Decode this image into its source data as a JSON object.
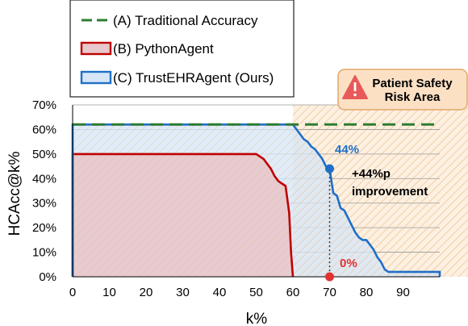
{
  "chart_data": {
    "type": "area",
    "title": "",
    "xlabel": "k%",
    "ylabel": "HCAcc@k%",
    "xlim": [
      0,
      100
    ],
    "ylim": [
      0,
      70
    ],
    "x_ticks": [
      "0",
      "10",
      "20",
      "30",
      "40",
      "50",
      "60",
      "70",
      "80",
      "90"
    ],
    "y_ticks": [
      "0%",
      "10%",
      "20%",
      "30%",
      "40%",
      "50%",
      "60%",
      "70%"
    ],
    "grid": "horizontal",
    "legend_position": "top-left",
    "series": [
      {
        "name": "(A) Traditional Accuracy",
        "style": "dashed",
        "color": "#2e7d32",
        "points": [
          [
            0,
            62
          ],
          [
            100,
            62
          ]
        ]
      },
      {
        "name": "(B) PythonAgent",
        "color": "#c00000",
        "fill": "#e8c8cc",
        "points": [
          [
            0,
            0
          ],
          [
            0,
            50
          ],
          [
            50,
            50
          ],
          [
            52,
            48
          ],
          [
            53,
            46
          ],
          [
            54,
            44
          ],
          [
            55,
            41
          ],
          [
            56,
            39
          ],
          [
            57,
            38
          ],
          [
            58,
            37
          ],
          [
            59,
            26
          ],
          [
            59.5,
            10
          ],
          [
            60,
            0
          ]
        ]
      },
      {
        "name": "(C) TrustEHRAgent (Ours)",
        "color": "#1f6fc6",
        "fill": "#d6e6f7",
        "points": [
          [
            0,
            0
          ],
          [
            0,
            62
          ],
          [
            60,
            62
          ],
          [
            62,
            58
          ],
          [
            63,
            56
          ],
          [
            64,
            55
          ],
          [
            65,
            53
          ],
          [
            66,
            52
          ],
          [
            67,
            50
          ],
          [
            68,
            48
          ],
          [
            69,
            45
          ],
          [
            70,
            44
          ],
          [
            71,
            34
          ],
          [
            72,
            33
          ],
          [
            73,
            28
          ],
          [
            74,
            27
          ],
          [
            75,
            24
          ],
          [
            76,
            21
          ],
          [
            77,
            18
          ],
          [
            78,
            16
          ],
          [
            79,
            15
          ],
          [
            80,
            15
          ],
          [
            81,
            13
          ],
          [
            82,
            11
          ],
          [
            83,
            8
          ],
          [
            84,
            6
          ],
          [
            85,
            3
          ],
          [
            86,
            2
          ],
          [
            95,
            2
          ],
          [
            100,
            2
          ],
          [
            100,
            0
          ]
        ]
      }
    ],
    "risk_area": {
      "x_start": 60,
      "x_end": 100,
      "label_line1": "Patient Safety",
      "label_line2": "Risk Area"
    },
    "annotations": {
      "trust_value_label": "44%",
      "trust_point": [
        70,
        44
      ],
      "python_value_label": "0%",
      "python_point": [
        70,
        0
      ],
      "improvement_line1": "+44%p",
      "improvement_line2": "improvement"
    },
    "colors": {
      "risk_fill": "#fbe3c8",
      "risk_hatch": "#e8c090",
      "risk_box": "#fbe0c4",
      "risk_box_border": "#e3a86a",
      "warning_icon": "#e85a5a",
      "blue_label": "#1f6fc6",
      "red_label": "#e33030"
    }
  }
}
